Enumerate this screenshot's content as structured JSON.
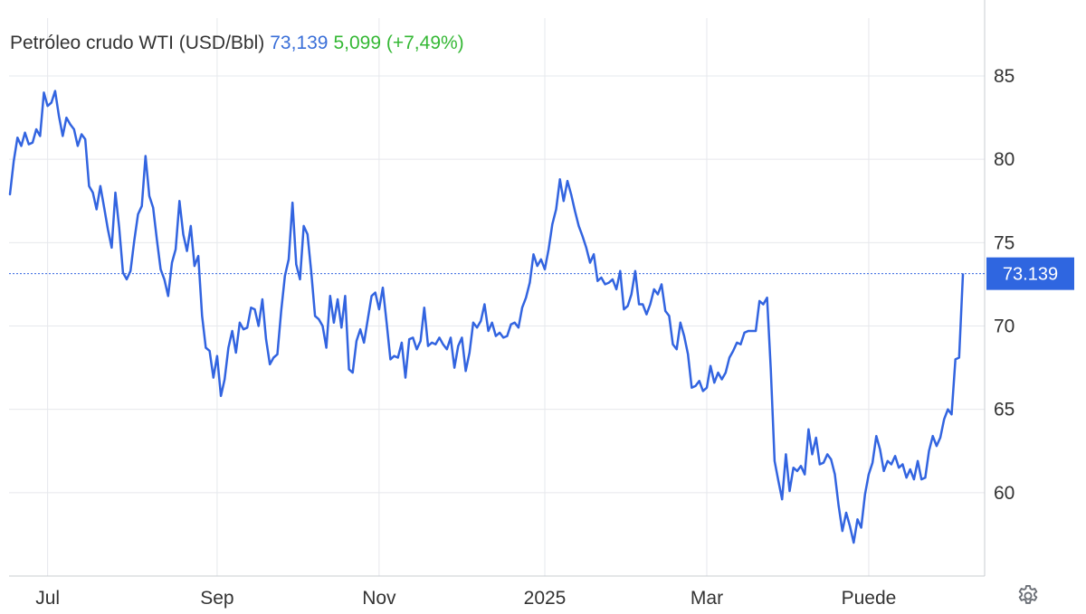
{
  "header": {
    "title": "Petróleo crudo WTI (USD/Bbl)",
    "price": "73,139",
    "change": "5,099 (+7,49%)"
  },
  "colors": {
    "line": "#3264e0",
    "price": "#3a6fd8",
    "change": "#35b835",
    "grid": "#e6e8ec",
    "axis": "#c8ccd2",
    "tag": "#2f66e0"
  },
  "icons": {
    "settings": "gear-icon"
  },
  "chart_data": {
    "type": "line",
    "title": "Petróleo crudo WTI (USD/Bbl)",
    "xlabel": "",
    "ylabel": "",
    "ylim": [
      55.0,
      90.0
    ],
    "y_ticks": [
      60,
      65,
      70,
      75,
      80,
      85
    ],
    "y_tick_labels": [
      "60",
      "65",
      "70",
      "75",
      "80",
      "85"
    ],
    "x_ticks": [
      {
        "label": "Jul",
        "value": 10
      },
      {
        "label": "Sep",
        "value": 55
      },
      {
        "label": "Nov",
        "value": 98
      },
      {
        "label": "2025",
        "value": 142
      },
      {
        "label": "Mar",
        "value": 185
      },
      {
        "label": "Puede",
        "value": 228
      }
    ],
    "grid": true,
    "last_price": 73.139,
    "last_price_label": "73.139",
    "series": [
      {
        "values": [
          77.9,
          79.9,
          81.3,
          80.8,
          81.6,
          80.9,
          81.0,
          81.8,
          81.4,
          84.0,
          83.2,
          83.4,
          84.1,
          82.6,
          81.4,
          82.5,
          82.1,
          81.8,
          80.8,
          81.5,
          81.2,
          78.4,
          78.0,
          77.0,
          78.4,
          77.1,
          75.8,
          74.7,
          78.0,
          75.9,
          73.2,
          72.8,
          73.3,
          75.1,
          76.7,
          77.2,
          80.2,
          77.8,
          77.1,
          75.2,
          73.4,
          72.8,
          71.8,
          73.8,
          74.6,
          77.5,
          75.5,
          74.5,
          76.0,
          73.6,
          74.2,
          70.6,
          68.7,
          68.5,
          66.9,
          68.2,
          65.8,
          66.8,
          68.7,
          69.7,
          68.4,
          70.2,
          69.8,
          69.9,
          71.1,
          71.0,
          70.0,
          71.6,
          69.2,
          67.7,
          68.1,
          68.3,
          70.9,
          73.0,
          74.0,
          77.4,
          73.7,
          72.8,
          76.0,
          75.5,
          73.2,
          70.6,
          70.4,
          70.0,
          68.7,
          71.8,
          70.2,
          71.6,
          69.9,
          71.8,
          67.4,
          67.2,
          69.1,
          69.8,
          69.0,
          70.4,
          71.8,
          72.0,
          71.0,
          72.3,
          70.2,
          68.0,
          68.2,
          68.1,
          69.0,
          66.9,
          69.2,
          69.3,
          68.6,
          69.1,
          71.1,
          68.8,
          69.0,
          68.9,
          69.3,
          68.9,
          68.6,
          69.3,
          67.5,
          68.8,
          69.3,
          67.3,
          68.4,
          70.2,
          69.9,
          70.3,
          71.3,
          69.7,
          70.2,
          69.4,
          69.6,
          69.3,
          69.4,
          70.1,
          70.2,
          69.9,
          71.1,
          71.7,
          72.6,
          74.3,
          73.6,
          74.0,
          73.4,
          74.6,
          76.1,
          77.0,
          78.8,
          77.5,
          78.7,
          77.9,
          76.9,
          76.0,
          75.4,
          74.7,
          73.8,
          74.3,
          72.7,
          72.9,
          72.5,
          72.6,
          72.8,
          72.2,
          73.3,
          71.0,
          71.2,
          71.9,
          73.3,
          71.3,
          71.3,
          70.7,
          71.3,
          72.2,
          71.9,
          72.5,
          70.9,
          70.6,
          68.9,
          68.6,
          70.2,
          69.4,
          68.3,
          66.3,
          66.4,
          66.7,
          66.1,
          66.3,
          67.6,
          66.6,
          67.2,
          66.8,
          67.2,
          68.1,
          68.5,
          69.0,
          68.9,
          69.6,
          69.7,
          69.7,
          69.7,
          71.5,
          71.3,
          71.7,
          67.4,
          61.9,
          60.7,
          59.6,
          62.3,
          60.1,
          61.5,
          61.3,
          61.6,
          61.1,
          63.8,
          62.3,
          63.3,
          61.7,
          61.8,
          62.3,
          62.0,
          61.1,
          59.2,
          57.7,
          58.8,
          58.0,
          57.0,
          58.4,
          57.9,
          59.9,
          61.1,
          61.8,
          63.4,
          62.6,
          61.3,
          61.9,
          61.7,
          62.2,
          61.5,
          61.7,
          60.9,
          61.4,
          60.8,
          61.9,
          60.8,
          60.9,
          62.5,
          63.4,
          62.8,
          63.3,
          64.4,
          65.0,
          64.7,
          68.0,
          68.1,
          73.1
        ]
      }
    ]
  }
}
